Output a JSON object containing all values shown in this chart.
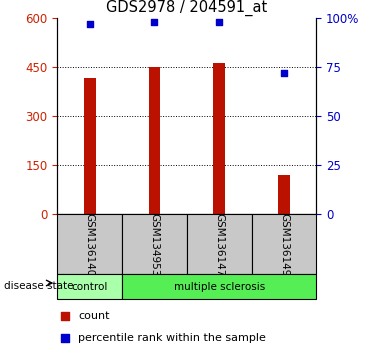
{
  "title": "GDS2978 / 204591_at",
  "samples": [
    "GSM136140",
    "GSM134953",
    "GSM136147",
    "GSM136149"
  ],
  "bar_values": [
    415,
    448,
    463,
    120
  ],
  "bar_color": "#bb1100",
  "dot_values": [
    97,
    98,
    98,
    72
  ],
  "dot_color": "#0000cc",
  "left_ylim": [
    0,
    600
  ],
  "right_ylim": [
    0,
    100
  ],
  "left_yticks": [
    0,
    150,
    300,
    450,
    600
  ],
  "right_yticks": [
    0,
    25,
    50,
    75,
    100
  ],
  "right_yticklabels": [
    "0",
    "25",
    "50",
    "75",
    "100%"
  ],
  "grid_values": [
    150,
    300,
    450
  ],
  "sample_bg_color": "#c8c8c8",
  "control_color": "#aaffaa",
  "ms_color": "#55ee55",
  "disease_label": "disease state",
  "legend_count": "count",
  "legend_pct": "percentile rank within the sample",
  "bar_width": 0.18
}
